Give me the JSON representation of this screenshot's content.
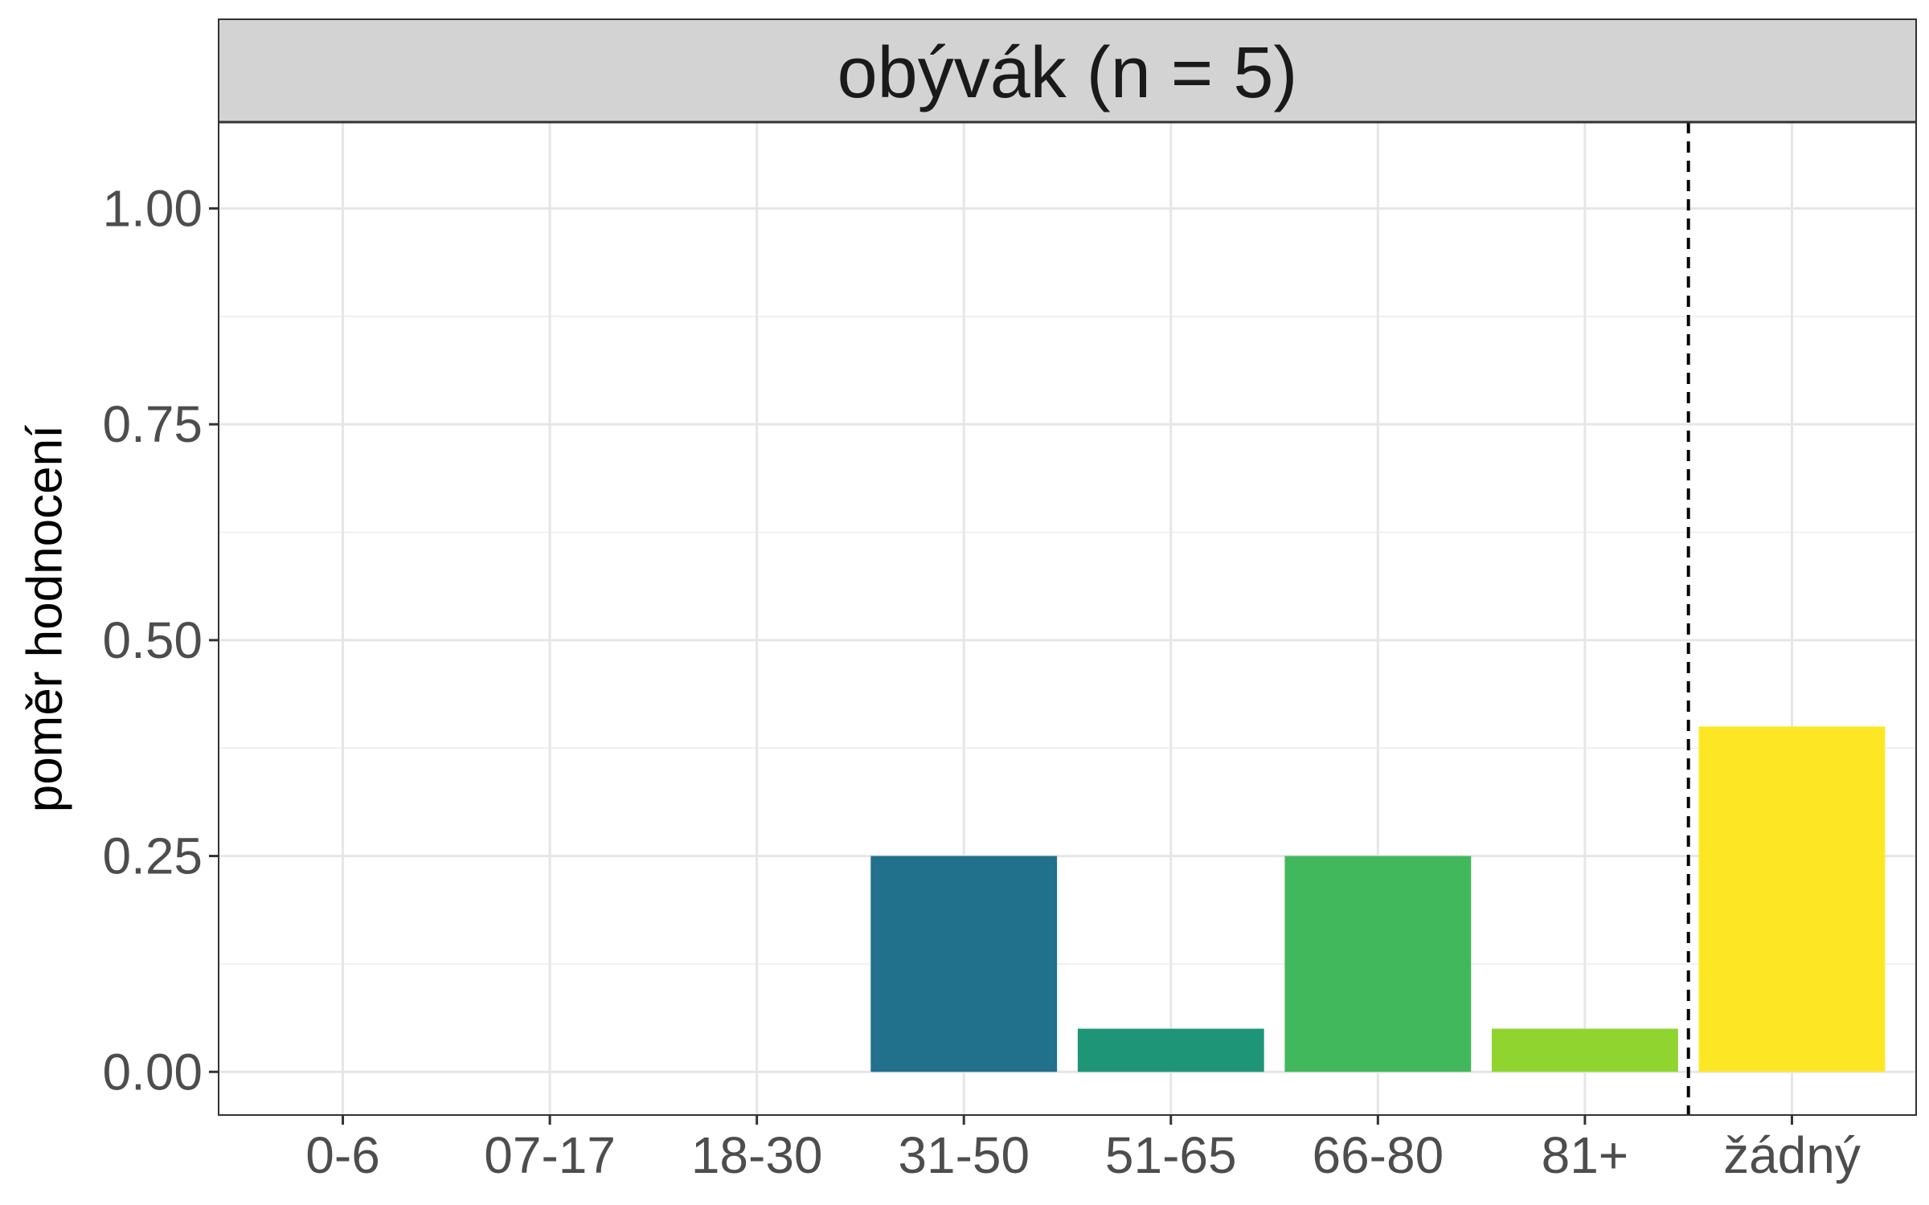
{
  "chart_data": {
    "type": "bar",
    "facet_title": "obývák (n = 5)",
    "xlabel": "",
    "ylabel": "poměr hodnocení",
    "categories": [
      "0-6",
      "07-17",
      "18-30",
      "31-50",
      "51-65",
      "66-80",
      "81+",
      "žádný"
    ],
    "values": [
      0,
      0,
      0,
      0.25,
      0.05,
      0.25,
      0.05,
      0.4
    ],
    "colors": [
      "#440154",
      "#46337e",
      "#365c8d",
      "#21708c",
      "#1f9577",
      "#41b85b",
      "#90d42f",
      "#fde725"
    ],
    "ylim": [
      -0.05,
      1.1
    ],
    "yticks": [
      0,
      0.25,
      0.5,
      0.75,
      1.0
    ],
    "ytick_labels": [
      "0.00",
      "0.25",
      "0.50",
      "0.75",
      "1.00"
    ],
    "reference_line": {
      "between_categories": [
        "81+",
        "žádný"
      ],
      "style": "dashed",
      "color": "#000000"
    },
    "grid": true,
    "legend": "none"
  }
}
